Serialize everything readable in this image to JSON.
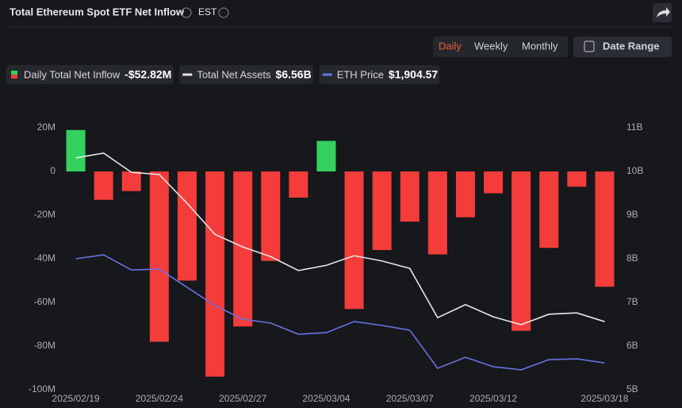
{
  "chart_data": {
    "type": "bar-line",
    "title": "Total Ethereum Spot ETF Net Inflow",
    "timezone": "EST",
    "buttons": [
      "Daily",
      "Weekly",
      "Monthly"
    ],
    "active_button": 0,
    "date_range": "Date Range",
    "categories": [
      "2025/02/19",
      null,
      null,
      "2025/02/24",
      null,
      null,
      "2025/02/27",
      null,
      null,
      "2025/03/04",
      null,
      null,
      "2025/03/07",
      null,
      null,
      "2025/03/12",
      null,
      null,
      null,
      "2025/03/18"
    ],
    "ylim": [
      -100,
      20
    ],
    "yticks": [
      {
        "value": 20,
        "label": "20M"
      },
      0,
      {
        "value": -20,
        "label": "-20M"
      },
      {
        "value": -40,
        "label": "-40M"
      },
      {
        "value": -60,
        "label": "-60M"
      },
      {
        "value": -80,
        "label": "-80M"
      },
      {
        "value": -100,
        "label": "-100M"
      }
    ],
    "y2lim": [
      5,
      11
    ],
    "y2ticks": [
      {
        "value": 11,
        "label": "11B"
      },
      {
        "value": 10,
        "label": "10B"
      },
      {
        "value": 9,
        "label": "9B"
      },
      {
        "value": 8,
        "label": "8B"
      },
      {
        "value": 7,
        "label": "7B"
      },
      {
        "value": 6,
        "label": "6B"
      },
      {
        "value": 5,
        "label": "5B"
      }
    ],
    "y3lim": [
      1700,
      3700
    ],
    "series": [
      {
        "name": "Daily Total Net Inflow",
        "latest_label": "-$52.82M",
        "kind": "bar",
        "positive_color": "#34d15f",
        "negative_color": "#f43c3a",
        "values": [
          19,
          -13,
          -9,
          -78,
          -50,
          -94,
          -71,
          -41,
          -12,
          14,
          -63,
          -36,
          -23,
          -38,
          -21,
          -10,
          -73,
          -35,
          -7,
          -52.82
        ]
      },
      {
        "name": "Total Net Assets",
        "latest_label": "$6.56B",
        "kind": "line",
        "axis": "y2",
        "color": "#e6e6e6",
        "values": [
          10.31,
          10.42,
          9.98,
          9.93,
          9.27,
          8.56,
          8.27,
          8.05,
          7.73,
          7.85,
          8.07,
          7.95,
          7.78,
          6.65,
          6.95,
          6.67,
          6.49,
          6.73,
          6.76,
          6.56
        ]
      },
      {
        "name": "ETH Price",
        "latest_label": "$1,904.57",
        "kind": "line",
        "axis": "y3",
        "color": "#6673e0",
        "values": [
          2700,
          2730,
          2615,
          2621,
          2482,
          2342,
          2239,
          2209,
          2124,
          2136,
          2221,
          2191,
          2155,
          1864,
          1948,
          1876,
          1852,
          1930,
          1936,
          1904.57
        ]
      }
    ]
  }
}
